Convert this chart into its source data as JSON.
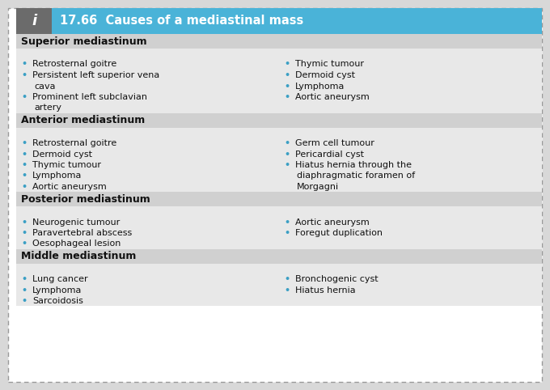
{
  "title_number": "17.66",
  "title_text": "Causes of a mediastinal mass",
  "title_bg": "#4ab3d8",
  "title_fg": "#ffffff",
  "icon_bg": "#6b6b6b",
  "icon_text": "i",
  "outer_bg": "#ffffff",
  "outer_border": "#aaaaaa",
  "header_bg": "#d0d0d0",
  "content_bg": "#e8e8e8",
  "bullet_color": "#3a9fc4",
  "text_color": "#111111",
  "sections": [
    {
      "header": "Superior mediastinum",
      "left_items": [
        [
          "Retrosternal goitre"
        ],
        [
          "Persistent left superior vena",
          "cava"
        ],
        [
          "Prominent left subclavian",
          "artery"
        ]
      ],
      "right_items": [
        [
          "Thymic tumour"
        ],
        [
          "Dermoid cyst"
        ],
        [
          "Lymphoma"
        ],
        [
          "Aortic aneurysm"
        ]
      ]
    },
    {
      "header": "Anterior mediastinum",
      "left_items": [
        [
          "Retrosternal goitre"
        ],
        [
          "Dermoid cyst"
        ],
        [
          "Thymic tumour"
        ],
        [
          "Lymphoma"
        ],
        [
          "Aortic aneurysm"
        ]
      ],
      "right_items": [
        [
          "Germ cell tumour"
        ],
        [
          "Pericardial cyst"
        ],
        [
          "Hiatus hernia through the",
          "diaphragmatic foramen of",
          "Morgagni"
        ]
      ]
    },
    {
      "header": "Posterior mediastinum",
      "left_items": [
        [
          "Neurogenic tumour"
        ],
        [
          "Paravertebral abscess"
        ],
        [
          "Oesophageal lesion"
        ]
      ],
      "right_items": [
        [
          "Aortic aneurysm"
        ],
        [
          "Foregut duplication"
        ]
      ]
    },
    {
      "header": "Middle mediastinum",
      "left_items": [
        [
          "Lung cancer"
        ],
        [
          "Lymphoma"
        ],
        [
          "Sarcoidosis"
        ]
      ],
      "right_items": [
        [
          "Bronchogenic cyst"
        ],
        [
          "Hiatus hernia"
        ]
      ]
    }
  ],
  "fig_w": 6.8,
  "fig_h": 4.82,
  "dpi": 100
}
